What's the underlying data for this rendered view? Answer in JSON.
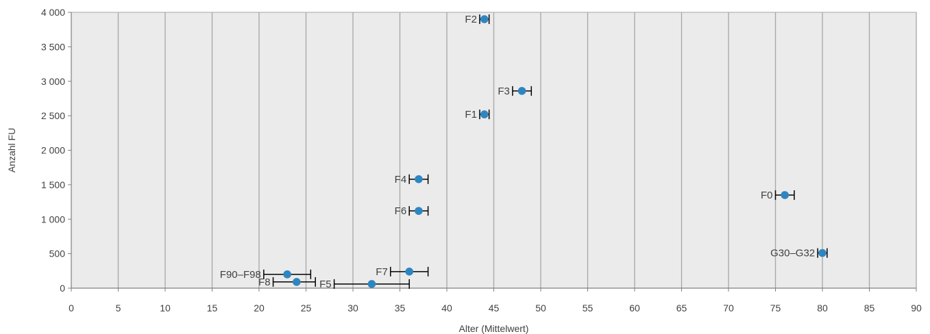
{
  "chart_data": {
    "type": "scatter",
    "title": "",
    "xlabel": "Alter (Mittelwert)",
    "ylabel": "Anzahl FU",
    "xlim": [
      0,
      90
    ],
    "ylim": [
      0,
      4000
    ],
    "x_ticks": [
      0,
      5,
      10,
      15,
      20,
      25,
      30,
      35,
      40,
      45,
      50,
      55,
      60,
      65,
      70,
      75,
      80,
      85,
      90
    ],
    "y_ticks": [
      0,
      500,
      1000,
      1500,
      2000,
      2500,
      3000,
      3500,
      4000
    ],
    "x_tick_labels": [
      "0",
      "5",
      "10",
      "15",
      "20",
      "25",
      "30",
      "35",
      "40",
      "45",
      "50",
      "55",
      "60",
      "65",
      "70",
      "75",
      "80",
      "85",
      "90"
    ],
    "y_tick_labels": [
      "0",
      "500",
      "1 000",
      "1 500",
      "2 000",
      "2 500",
      "3 000",
      "3 500",
      "4 000"
    ],
    "grid": "vertical",
    "legend": "none",
    "colors": {
      "point": "#2e86c1",
      "plot_bg": "#ebebeb",
      "grid": "#a6a6a6",
      "error_bar": "#000000",
      "text": "#404040"
    },
    "points": [
      {
        "label": "F2",
        "x": 44,
        "y": 3900,
        "x_err": [
          43.5,
          44.5
        ]
      },
      {
        "label": "F3",
        "x": 48,
        "y": 2860,
        "x_err": [
          47,
          49
        ]
      },
      {
        "label": "F1",
        "x": 44,
        "y": 2520,
        "x_err": [
          43.5,
          44.5
        ]
      },
      {
        "label": "F4",
        "x": 37,
        "y": 1580,
        "x_err": [
          36,
          38
        ]
      },
      {
        "label": "F6",
        "x": 37,
        "y": 1120,
        "x_err": [
          36,
          38
        ]
      },
      {
        "label": "F0",
        "x": 76,
        "y": 1350,
        "x_err": [
          75,
          77
        ]
      },
      {
        "label": "G30–G32",
        "x": 80,
        "y": 510,
        "x_err": [
          79.5,
          80.5
        ]
      },
      {
        "label": "F7",
        "x": 36,
        "y": 240,
        "x_err": [
          34,
          38
        ]
      },
      {
        "label": "F90–F98",
        "x": 23,
        "y": 200,
        "x_err": [
          20.5,
          25.5
        ]
      },
      {
        "label": "F8",
        "x": 24,
        "y": 90,
        "x_err": [
          21.5,
          26
        ]
      },
      {
        "label": "F5",
        "x": 32,
        "y": 60,
        "x_err": [
          28,
          36
        ]
      }
    ]
  }
}
